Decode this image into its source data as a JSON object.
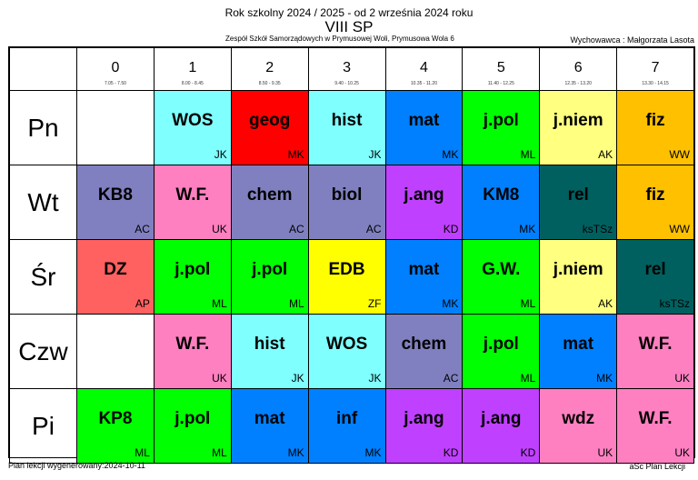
{
  "header": {
    "line1": "Rok szkolny 2024 / 2025 - od 2 września 2024 roku",
    "class_name": "VIII SP",
    "school": "Zespół Szkół Samorządowych w Prymusowej Woli, Prymusowa Wola 6",
    "teacher": "Wychowawca : Małgorzata Lasota"
  },
  "periods": [
    {
      "num": "0",
      "time": "7.05 - 7.50"
    },
    {
      "num": "1",
      "time": "8.00 - 8.45"
    },
    {
      "num": "2",
      "time": "8.50 - 9.35"
    },
    {
      "num": "3",
      "time": "9.40 - 10.25"
    },
    {
      "num": "4",
      "time": "10.35 - 11.20"
    },
    {
      "num": "5",
      "time": "11.40 - 12.25"
    },
    {
      "num": "6",
      "time": "12.35 - 13.20"
    },
    {
      "num": "7",
      "time": "13.30 - 14.15"
    }
  ],
  "days": [
    {
      "label": "Pn",
      "lessons": [
        {
          "subject": "",
          "teacher": "",
          "color": "#ffffff"
        },
        {
          "subject": "WOS",
          "teacher": "JK",
          "color": "#80ffff"
        },
        {
          "subject": "geog",
          "teacher": "MK",
          "color": "#ff0000"
        },
        {
          "subject": "hist",
          "teacher": "JK",
          "color": "#80ffff"
        },
        {
          "subject": "mat",
          "teacher": "MK",
          "color": "#0080ff"
        },
        {
          "subject": "j.pol",
          "teacher": "ML",
          "color": "#00ff00"
        },
        {
          "subject": "j.niem",
          "teacher": "AK",
          "color": "#ffff80"
        },
        {
          "subject": "fiz",
          "teacher": "WW",
          "color": "#ffc000"
        }
      ]
    },
    {
      "label": "Wt",
      "lessons": [
        {
          "subject": "KB8",
          "teacher": "AC",
          "color": "#8080c0"
        },
        {
          "subject": "W.F.",
          "teacher": "UK",
          "color": "#ff80c0"
        },
        {
          "subject": "chem",
          "teacher": "AC",
          "color": "#8080c0"
        },
        {
          "subject": "biol",
          "teacher": "AC",
          "color": "#8080c0"
        },
        {
          "subject": "j.ang",
          "teacher": "KD",
          "color": "#c040ff"
        },
        {
          "subject": "KM8",
          "teacher": "MK",
          "color": "#0080ff"
        },
        {
          "subject": "rel",
          "teacher": "ksTSz",
          "color": "#006060"
        },
        {
          "subject": "fiz",
          "teacher": "WW",
          "color": "#ffc000"
        }
      ]
    },
    {
      "label": "Śr",
      "lessons": [
        {
          "subject": "DZ",
          "teacher": "AP",
          "color": "#ff6060"
        },
        {
          "subject": "j.pol",
          "teacher": "ML",
          "color": "#00ff00"
        },
        {
          "subject": "j.pol",
          "teacher": "ML",
          "color": "#00ff00"
        },
        {
          "subject": "EDB",
          "teacher": "ZF",
          "color": "#ffff00"
        },
        {
          "subject": "mat",
          "teacher": "MK",
          "color": "#0080ff"
        },
        {
          "subject": "G.W.",
          "teacher": "ML",
          "color": "#00ff00"
        },
        {
          "subject": "j.niem",
          "teacher": "AK",
          "color": "#ffff80"
        },
        {
          "subject": "rel",
          "teacher": "ksTSz",
          "color": "#006060"
        }
      ]
    },
    {
      "label": "Czw",
      "lessons": [
        {
          "subject": "",
          "teacher": "",
          "color": "#ffffff"
        },
        {
          "subject": "W.F.",
          "teacher": "UK",
          "color": "#ff80c0"
        },
        {
          "subject": "hist",
          "teacher": "JK",
          "color": "#80ffff"
        },
        {
          "subject": "WOS",
          "teacher": "JK",
          "color": "#80ffff"
        },
        {
          "subject": "chem",
          "teacher": "AC",
          "color": "#8080c0"
        },
        {
          "subject": "j.pol",
          "teacher": "ML",
          "color": "#00ff00"
        },
        {
          "subject": "mat",
          "teacher": "MK",
          "color": "#0080ff"
        },
        {
          "subject": "W.F.",
          "teacher": "UK",
          "color": "#ff80c0"
        }
      ]
    },
    {
      "label": "Pi",
      "lessons": [
        {
          "subject": "KP8",
          "teacher": "ML",
          "color": "#00ff00"
        },
        {
          "subject": "j.pol",
          "teacher": "ML",
          "color": "#00ff00"
        },
        {
          "subject": "mat",
          "teacher": "MK",
          "color": "#0080ff"
        },
        {
          "subject": "inf",
          "teacher": "MK",
          "color": "#0080ff"
        },
        {
          "subject": "j.ang",
          "teacher": "KD",
          "color": "#c040ff"
        },
        {
          "subject": "j.ang",
          "teacher": "KD",
          "color": "#c040ff"
        },
        {
          "subject": "wdz",
          "teacher": "UK",
          "color": "#ff80c0"
        },
        {
          "subject": "W.F.",
          "teacher": "UK",
          "color": "#ff80c0"
        }
      ]
    }
  ],
  "footer": {
    "generated": "Plan lekcji wygenerowany:2024-10-11",
    "brand": "aSc Plan Lekcji"
  }
}
